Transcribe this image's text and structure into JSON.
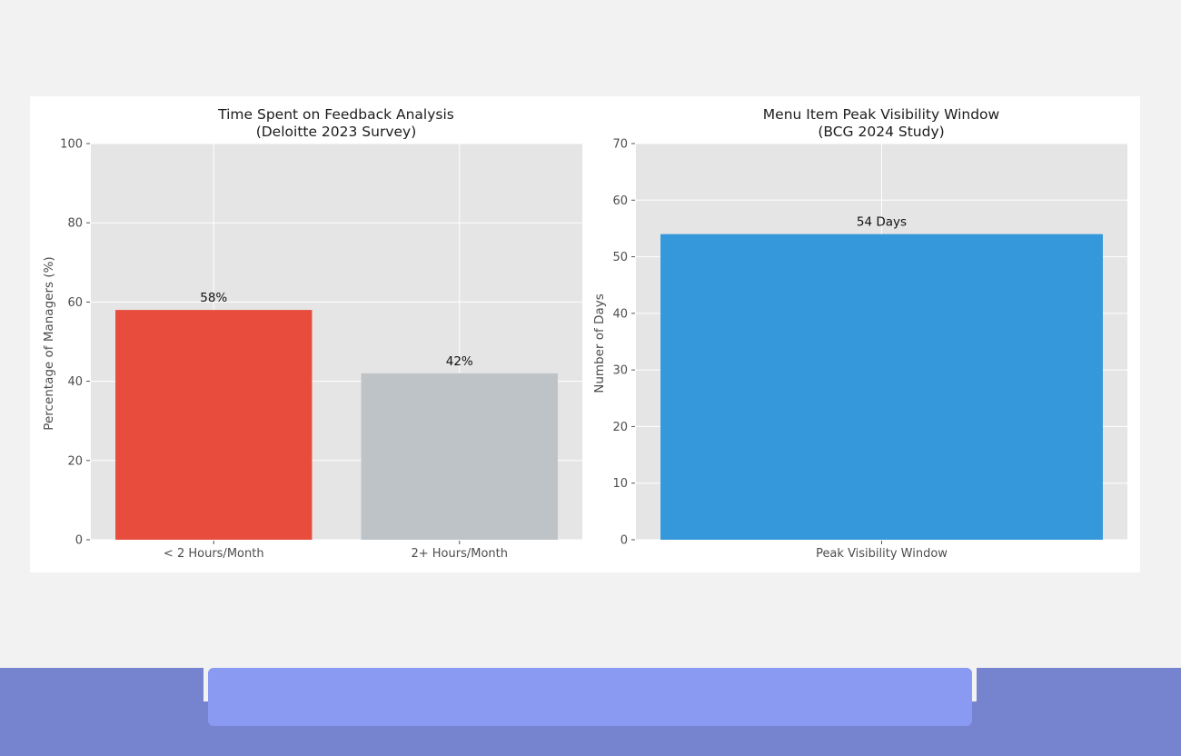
{
  "chart_data": [
    {
      "type": "bar",
      "title": "Time Spent on Feedback Analysis",
      "subtitle": "(Deloitte 2023 Survey)",
      "categories": [
        "< 2 Hours/Month",
        "2+ Hours/Month"
      ],
      "values": [
        58,
        42
      ],
      "data_labels": [
        "58%",
        "42%"
      ],
      "colors": [
        "#e74c3c",
        "#bdc3c7"
      ],
      "xlabel": "",
      "ylabel": "Percentage of Managers (%)",
      "ylim": [
        0,
        100
      ],
      "yticks": [
        0,
        20,
        40,
        60,
        80,
        100
      ],
      "grid": true
    },
    {
      "type": "bar",
      "title": "Menu Item Peak Visibility Window",
      "subtitle": "(BCG 2024 Study)",
      "categories": [
        "Peak Visibility Window"
      ],
      "values": [
        54
      ],
      "data_labels": [
        "54 Days"
      ],
      "colors": [
        "#3498db"
      ],
      "xlabel": "",
      "ylabel": "Number of Days",
      "ylim": [
        0,
        70
      ],
      "yticks": [
        0,
        10,
        20,
        30,
        40,
        50,
        60,
        70
      ],
      "grid": true
    }
  ],
  "theme": {
    "page_background": "#f2f2f2",
    "plot_background": "#e5e5e5",
    "grid_color": "#ffffff",
    "footer_color": "#7683cf",
    "footer_input_color": "#8a9af2"
  }
}
